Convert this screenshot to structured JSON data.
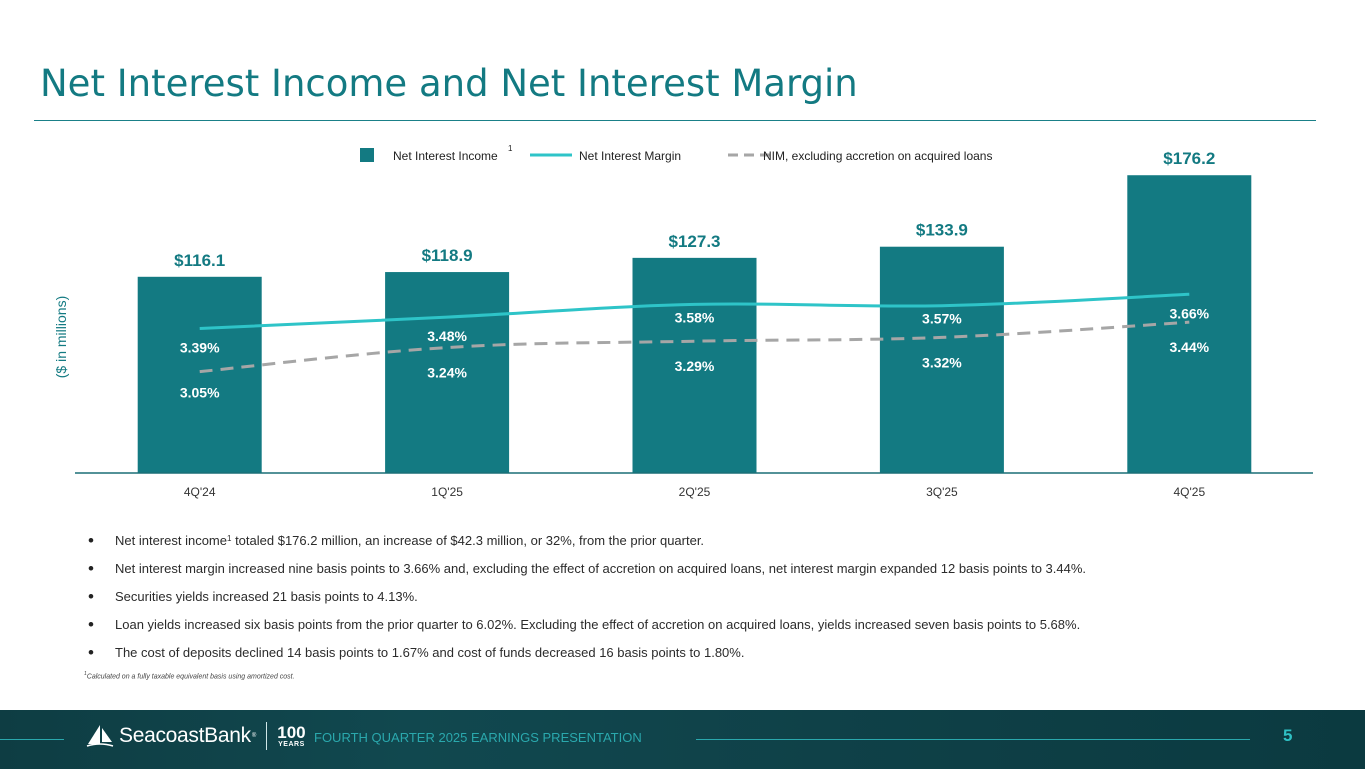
{
  "page": {
    "title": "Net Interest Income and Net Interest Margin",
    "footer_caption": "FOURTH QUARTER 2025 EARNINGS PRESENTATION",
    "page_number": "5",
    "brand_name": "SeacoastBank",
    "brand_reg": "®",
    "brand_years_number": "100",
    "brand_years_text": "YEARS"
  },
  "chart_data": {
    "type": "bar",
    "categories": [
      "4Q'24",
      "1Q'25",
      "2Q'25",
      "3Q'25",
      "4Q'25"
    ],
    "ylabel": "($ in millions)",
    "bar_ylim": [
      0,
      200
    ],
    "bar_value_labels": [
      "$116.1",
      "$118.9",
      "$127.3",
      "$133.9",
      "$176.2"
    ],
    "series": [
      {
        "name": "Net Interest Income",
        "name_superscript": "1",
        "kind": "bar",
        "values": [
          116.1,
          118.9,
          127.3,
          133.9,
          176.2
        ]
      },
      {
        "name": "Net Interest Margin",
        "kind": "line",
        "style": "solid",
        "values": [
          3.39,
          3.48,
          3.58,
          3.57,
          3.66
        ],
        "labels": [
          "3.39%",
          "3.48%",
          "3.58%",
          "3.57%",
          "3.66%"
        ]
      },
      {
        "name": "NIM, excluding accretion on acquired loans",
        "kind": "line",
        "style": "dashed",
        "values": [
          3.05,
          3.24,
          3.29,
          3.32,
          3.44
        ],
        "labels": [
          "3.05%",
          "3.24%",
          "3.29%",
          "3.32%",
          "3.44%"
        ]
      }
    ],
    "line_ylim": [
      2.55,
      3.97
    ],
    "legend": "top-center",
    "grid": false,
    "colors": {
      "bar": "#137a82",
      "nim": "#2ec4c8",
      "nim_excl": "#a6a6a6",
      "axis": "#1a6f77"
    }
  },
  "bullets": [
    {
      "pre": "Net interest income",
      "sup": "1",
      "post": " totaled $176.2 million, an increase of $42.3 million, or 32%, from the prior quarter."
    },
    {
      "pre": "Net interest margin increased nine basis points to 3.66% and, excluding the effect of accretion on acquired loans, net interest margin expanded 12 basis points to 3.44%.",
      "sup": "",
      "post": ""
    },
    {
      "pre": "Securities yields increased 21 basis points to 4.13%.",
      "sup": "",
      "post": ""
    },
    {
      "pre": "Loan yields increased six basis points from the prior quarter to 6.02%. Excluding the effect of accretion on acquired loans, yields increased seven basis points to 5.68%.",
      "sup": "",
      "post": ""
    },
    {
      "pre": "The cost of deposits declined 14 basis points to 1.67% and cost of funds decreased 16 basis points to 1.80%.",
      "sup": "",
      "post": ""
    }
  ],
  "footnote": {
    "sup": "1",
    "text": "Calculated on a fully taxable equivalent basis using amortized cost."
  }
}
